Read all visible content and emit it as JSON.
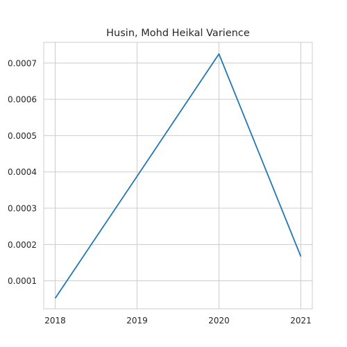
{
  "chart_data": {
    "type": "line",
    "title": "Husin, Mohd Heikal Varience",
    "xlabel": "",
    "ylabel": "",
    "x": [
      2018,
      2019,
      2020,
      2021
    ],
    "series": [
      {
        "values": [
          5.2e-05,
          0.000388,
          0.000725,
          0.000167
        ],
        "color": "#1f77b4"
      }
    ],
    "xlim": [
      2017.86,
      2021.14
    ],
    "ylim": [
      2.29e-05,
      0.000757
    ],
    "x_ticks": [
      "2018",
      "2019",
      "2020",
      "2021"
    ],
    "y_ticks": [
      "0.0001",
      "0.0002",
      "0.0003",
      "0.0004",
      "0.0005",
      "0.0006",
      "0.0007"
    ],
    "y_tick_values": [
      0.0001,
      0.0002,
      0.0003,
      0.0004,
      0.0005,
      0.0006,
      0.0007
    ],
    "grid": true,
    "grid_color": "#cccccc",
    "background": "#ffffff"
  }
}
